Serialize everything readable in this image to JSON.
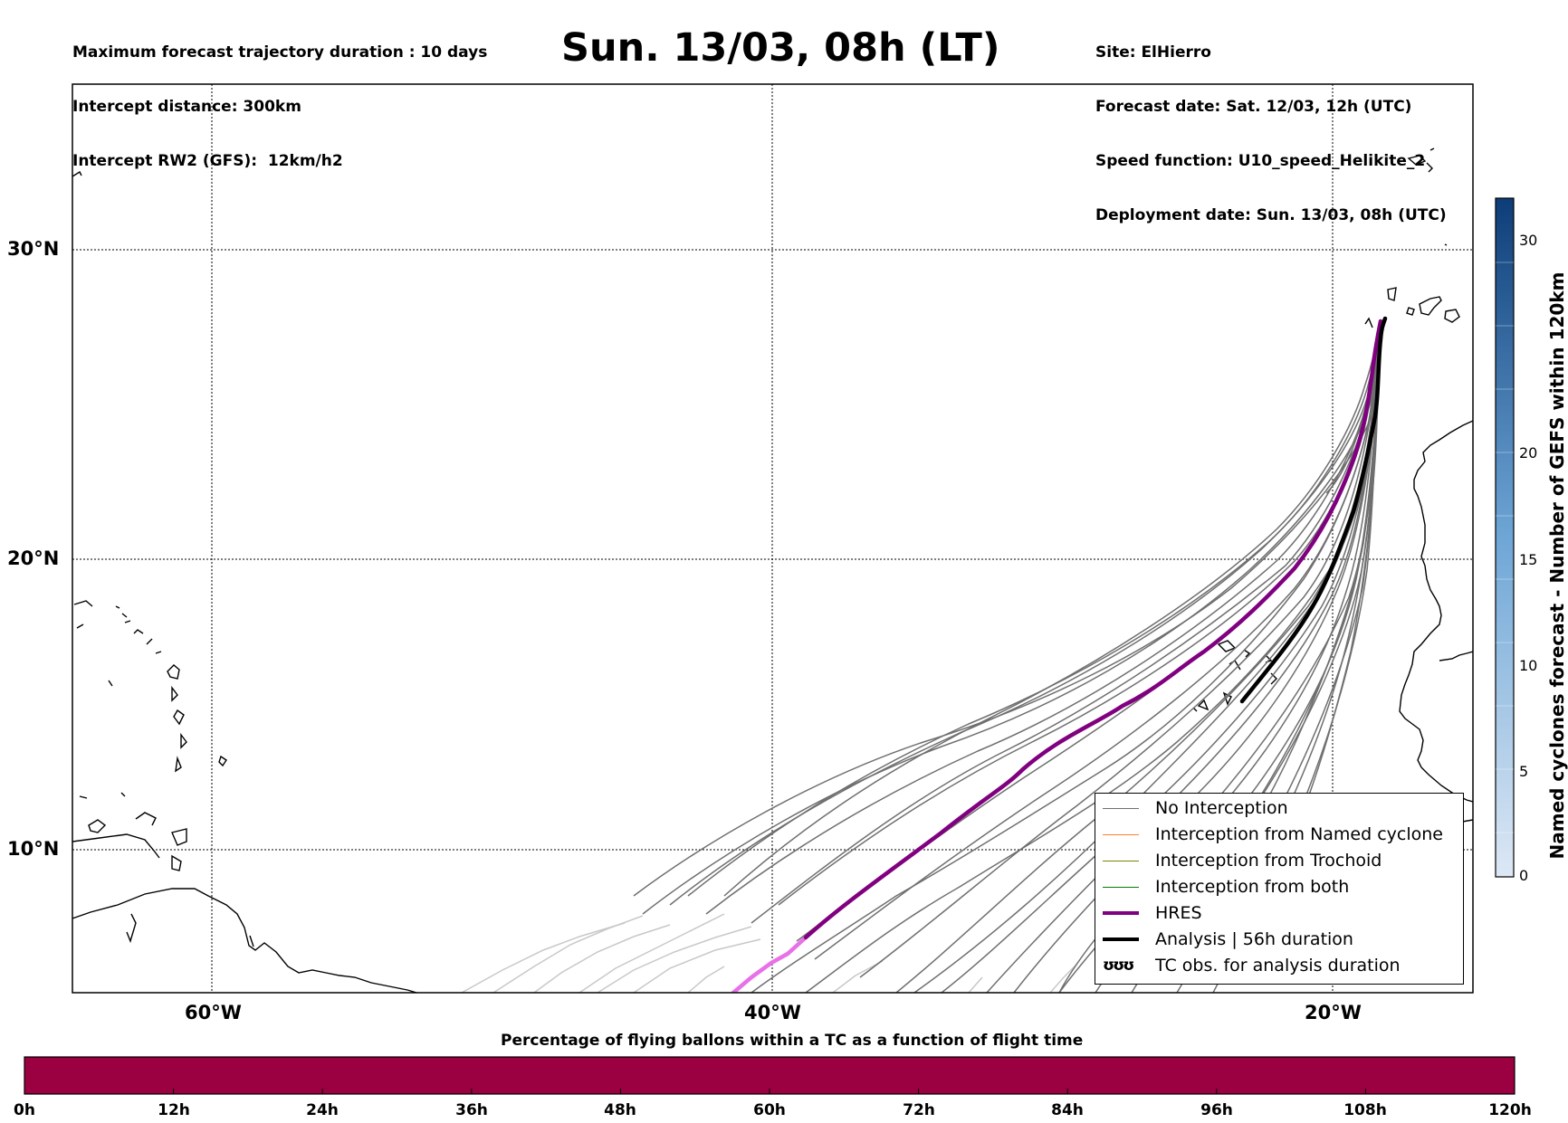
{
  "header": {
    "left_line1": "Maximum forecast trajectory duration : 10 days",
    "left_line2": "Intercept distance: 300km",
    "left_line3": "Intercept RW2 (GFS):  12km/h2",
    "title": "Sun. 13/03, 08h (LT)",
    "right_line1": "Site: ElHierro",
    "right_line2": "Forecast date: Sat. 12/03, 12h (UTC)",
    "right_line3": "Speed function: U10_speed_Helikite_2",
    "right_line4": "Deployment date: Sun. 13/03, 08h (UTC)"
  },
  "map": {
    "lat_labels": [
      "30°N",
      "20°N",
      "10°N"
    ],
    "lon_labels": [
      "60°W",
      "40°W",
      "20°W"
    ],
    "colors": {
      "no_interception": "#6f6f6f",
      "faded_trajectory": "#c8c8c8",
      "named_cyclone": "#ff7f27",
      "trochoid": "#808000",
      "both": "#008000",
      "hres": "#800080",
      "hres_faded": "#e870e8",
      "analysis": "#000000"
    }
  },
  "legend": {
    "items": [
      {
        "label": "No Interception"
      },
      {
        "label": "Interception from Named cyclone"
      },
      {
        "label": "Interception from Trochoid"
      },
      {
        "label": "Interception from both"
      },
      {
        "label": "HRES"
      },
      {
        "label": "Analysis | 56h duration"
      },
      {
        "label": "TC obs. for analysis duration",
        "symbol": "ʊʊʊ"
      }
    ]
  },
  "colorbar": {
    "title": "Named cyclones forecast - Number of GEFS within 120km",
    "ticks": [
      "0",
      "5",
      "10",
      "15",
      "20",
      "30"
    ]
  },
  "time_bar": {
    "title": "Percentage of flying ballons within a TC as a function of flight time",
    "fill_color": "#9b0040",
    "ticks": [
      "0h",
      "12h",
      "24h",
      "36h",
      "48h",
      "60h",
      "72h",
      "84h",
      "96h",
      "108h",
      "120h"
    ]
  }
}
